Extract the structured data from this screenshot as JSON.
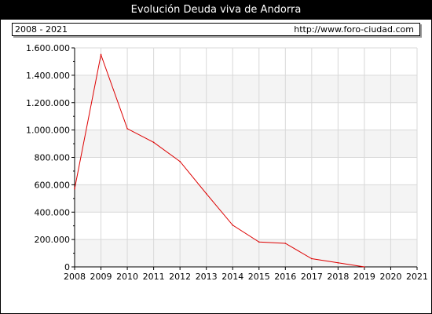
{
  "header": {
    "title": "Evolución Deuda viva de Andorra",
    "range": "2008 - 2021",
    "source": "http://www.foro-ciudad.com"
  },
  "colors": {
    "line": "#dd0000",
    "band": "#f4f4f4",
    "grid": "#d8d8d8",
    "axis": "#000000"
  },
  "chart_data": {
    "type": "line",
    "title": "Evolución Deuda viva de Andorra",
    "xlabel": "",
    "ylabel": "",
    "ylim": [
      0,
      1600000
    ],
    "y_ticks": [
      0,
      200000,
      400000,
      600000,
      800000,
      1000000,
      1200000,
      1400000,
      1600000
    ],
    "y_tick_labels": [
      "0",
      "200.000",
      "400.000",
      "600.000",
      "800.000",
      "1.000.000",
      "1.200.000",
      "1.400.000",
      "1.600.000"
    ],
    "x_ticks": [
      2008,
      2009,
      2010,
      2011,
      2012,
      2013,
      2014,
      2015,
      2016,
      2017,
      2018,
      2019,
      2020,
      2021
    ],
    "grid": true,
    "series": [
      {
        "x": [
          2008,
          2009,
          2010,
          2011,
          2012,
          2013,
          2014,
          2015,
          2016,
          2017,
          2018,
          2019
        ],
        "values": [
          570000,
          1550000,
          1010000,
          910000,
          770000,
          535000,
          305000,
          182000,
          172000,
          60000,
          30000,
          0
        ]
      }
    ]
  }
}
